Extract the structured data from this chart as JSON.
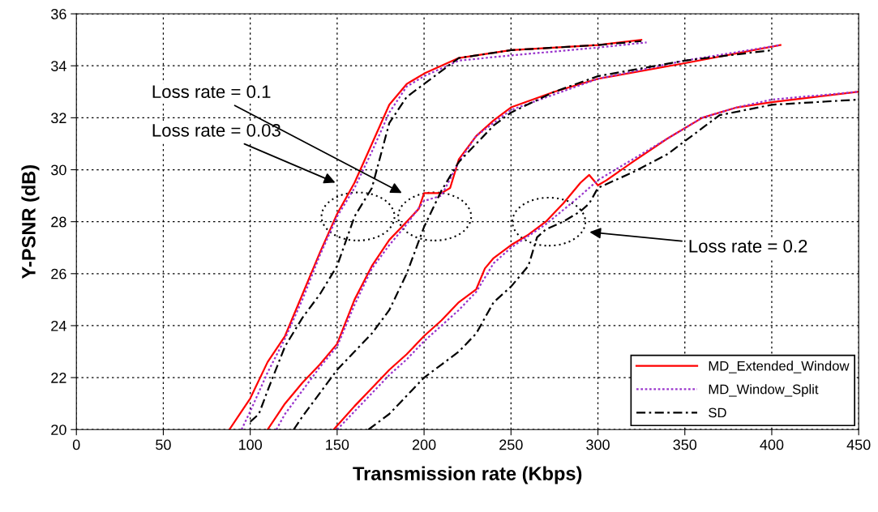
{
  "chart_data": {
    "type": "line",
    "xlabel": "Transmission rate (Kbps)",
    "ylabel": "Y-PSNR (dB)",
    "xlim": [
      0,
      450
    ],
    "xticks": [
      0,
      50,
      100,
      150,
      200,
      250,
      300,
      350,
      400,
      450
    ],
    "ylim": [
      20,
      36
    ],
    "yticks": [
      20,
      22,
      24,
      26,
      28,
      30,
      32,
      34,
      36
    ],
    "grid": true,
    "legend": "bottom right",
    "marker": "none",
    "series": [
      {
        "name": "MD_Extended_Window",
        "color": "#ff0000",
        "line_style": "solid",
        "x": [
          88,
          100,
          110,
          120,
          130,
          140,
          150,
          160,
          170,
          180,
          190,
          200,
          220,
          250,
          300,
          325
        ],
        "values": [
          20,
          21.2,
          22.6,
          23.6,
          25.2,
          26.8,
          28.3,
          29.5,
          31,
          32.5,
          33.3,
          33.7,
          34.3,
          34.6,
          34.8,
          35.0
        ]
      },
      {
        "name": "MD_Window_Split",
        "color": "#9933cc",
        "line_style": "dotted",
        "x": [
          95,
          100,
          110,
          120,
          130,
          140,
          150,
          160,
          170,
          180,
          190,
          200,
          220,
          250,
          300,
          328
        ],
        "values": [
          20,
          20.7,
          22.2,
          23.5,
          25,
          26.7,
          28.2,
          29.3,
          30.7,
          32.2,
          33.2,
          33.6,
          34.2,
          34.4,
          34.7,
          34.9
        ]
      },
      {
        "name": "SD",
        "color": "#000000",
        "line_style": "dashdot",
        "x": [
          100,
          105,
          110,
          120,
          130,
          140,
          150,
          160,
          170,
          180,
          190,
          200,
          220,
          250,
          300,
          325
        ],
        "values": [
          20.3,
          20.6,
          21.5,
          23.2,
          24.3,
          25.2,
          26.3,
          28.2,
          29.3,
          31.8,
          32.8,
          33.3,
          34.3,
          34.6,
          34.8,
          34.95
        ]
      },
      {
        "color": "#ff0000",
        "line_style": "solid",
        "x": [
          110,
          120,
          130,
          140,
          150,
          160,
          170,
          180,
          190,
          197,
          200,
          210,
          215,
          220,
          230,
          240,
          250,
          275,
          300,
          350,
          405
        ],
        "values": [
          20,
          21,
          21.8,
          22.5,
          23.3,
          25,
          26.3,
          27.3,
          28,
          28.5,
          29.1,
          29.1,
          29.3,
          30.4,
          31.3,
          31.9,
          32.4,
          33,
          33.5,
          34.1,
          34.8
        ]
      },
      {
        "color": "#9933cc",
        "line_style": "dotted",
        "x": [
          115,
          120,
          130,
          140,
          150,
          160,
          170,
          180,
          190,
          200,
          210,
          220,
          230,
          250,
          300,
          350,
          405
        ],
        "values": [
          20,
          20.6,
          21.5,
          22.4,
          23.2,
          24.8,
          26.2,
          27.1,
          27.9,
          28.8,
          29,
          30.3,
          31.3,
          32.3,
          33.5,
          34.2,
          34.8
        ]
      },
      {
        "color": "#000000",
        "line_style": "dashdot",
        "x": [
          125,
          130,
          140,
          150,
          160,
          170,
          180,
          190,
          200,
          210,
          220,
          230,
          240,
          250,
          275,
          300,
          350,
          400
        ],
        "values": [
          20,
          20.5,
          21.4,
          22.3,
          23,
          23.7,
          24.6,
          26,
          27.8,
          29.2,
          30.3,
          31,
          31.7,
          32.2,
          33,
          33.6,
          34.2,
          34.6
        ]
      },
      {
        "color": "#ff0000",
        "line_style": "solid",
        "x": [
          148,
          160,
          170,
          180,
          190,
          200,
          210,
          220,
          230,
          235,
          240,
          250,
          260,
          270,
          280,
          290,
          295,
          300,
          305,
          320,
          340,
          360,
          380,
          400,
          450
        ],
        "values": [
          20,
          20.9,
          21.6,
          22.3,
          22.9,
          23.6,
          24.2,
          24.9,
          25.4,
          26.2,
          26.6,
          27.1,
          27.5,
          28,
          28.7,
          29.5,
          29.8,
          29.4,
          29.6,
          30.3,
          31.2,
          32,
          32.4,
          32.6,
          33
        ]
      },
      {
        "color": "#9933cc",
        "line_style": "dotted",
        "x": [
          150,
          160,
          170,
          180,
          190,
          200,
          210,
          220,
          230,
          240,
          250,
          270,
          290,
          300,
          320,
          340,
          360,
          380,
          400,
          450
        ],
        "values": [
          20,
          20.7,
          21.4,
          22.1,
          22.7,
          23.4,
          24,
          24.6,
          25.3,
          26.4,
          27,
          27.9,
          29,
          29.6,
          30.4,
          31.2,
          32,
          32.4,
          32.7,
          33
        ]
      },
      {
        "color": "#000000",
        "line_style": "dashdot",
        "x": [
          168,
          180,
          190,
          200,
          210,
          220,
          230,
          240,
          250,
          260,
          265,
          270,
          280,
          290,
          295,
          300,
          320,
          340,
          360,
          370,
          400,
          450
        ],
        "values": [
          20,
          20.6,
          21.3,
          22,
          22.5,
          23,
          23.7,
          24.9,
          25.5,
          26.3,
          27.4,
          27.7,
          28,
          28.4,
          28.7,
          29.3,
          29.9,
          30.6,
          31.6,
          32.1,
          32.5,
          32.7
        ]
      }
    ],
    "annotations": [
      "Loss rate = 0.03",
      "Loss rate = 0.1",
      "Loss rate = 0.2"
    ]
  }
}
